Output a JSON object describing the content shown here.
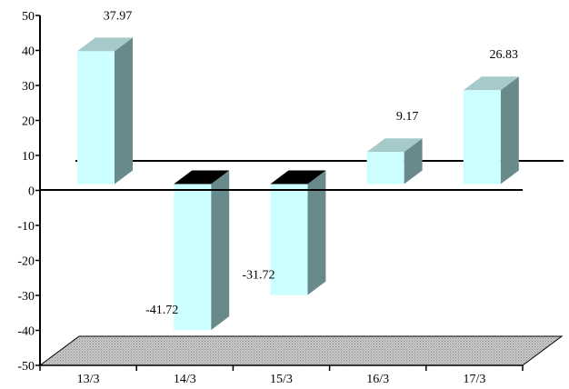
{
  "chart_data": {
    "type": "bar",
    "categories": [
      "13/3",
      "14/3",
      "15/3",
      "16/3",
      "17/3"
    ],
    "values": [
      37.97,
      -41.72,
      -31.72,
      9.17,
      26.83
    ],
    "data_labels": [
      "37.97",
      "-41.72",
      "-31.72",
      "9.17",
      "26.83"
    ],
    "y_ticks": [
      "50",
      "40",
      "30",
      "20",
      "10",
      "0",
      "-10",
      "-20",
      "-30",
      "-40",
      "-50"
    ],
    "ylim": [
      -50,
      50
    ],
    "grid": false,
    "legend": "none",
    "style": "3d",
    "colors": {
      "bar_front": "#ccffff",
      "bar_top": "#a6caca",
      "bar_side": "#688a8a",
      "negative_top": "#000000",
      "floor": "#c0c0c0",
      "axis": "#000000"
    }
  }
}
